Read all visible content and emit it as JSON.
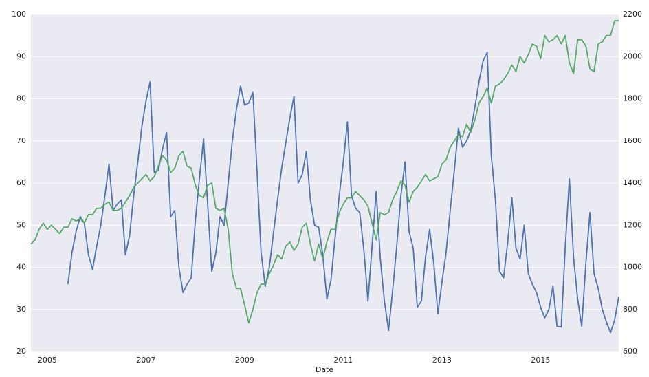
{
  "chart_data": {
    "type": "line",
    "xlabel": "Date",
    "x": [
      2004.667,
      2004.75,
      2004.833,
      2004.917,
      2005,
      2005.083,
      2005.167,
      2005.25,
      2005.333,
      2005.417,
      2005.5,
      2005.583,
      2005.667,
      2005.75,
      2005.833,
      2005.917,
      2006,
      2006.083,
      2006.167,
      2006.25,
      2006.333,
      2006.417,
      2006.5,
      2006.583,
      2006.667,
      2006.75,
      2006.833,
      2006.917,
      2007,
      2007.083,
      2007.167,
      2007.25,
      2007.333,
      2007.417,
      2007.5,
      2007.583,
      2007.667,
      2007.75,
      2007.833,
      2007.917,
      2008,
      2008.083,
      2008.167,
      2008.25,
      2008.333,
      2008.417,
      2008.5,
      2008.583,
      2008.667,
      2008.75,
      2008.833,
      2008.917,
      2009,
      2009.083,
      2009.167,
      2009.25,
      2009.333,
      2009.417,
      2009.5,
      2009.583,
      2009.667,
      2009.75,
      2009.833,
      2009.917,
      2010,
      2010.083,
      2010.167,
      2010.25,
      2010.333,
      2010.417,
      2010.5,
      2010.583,
      2010.667,
      2010.75,
      2010.833,
      2010.917,
      2011,
      2011.083,
      2011.167,
      2011.25,
      2011.333,
      2011.417,
      2011.5,
      2011.583,
      2011.667,
      2011.75,
      2011.833,
      2011.917,
      2012,
      2012.083,
      2012.167,
      2012.25,
      2012.333,
      2012.417,
      2012.5,
      2012.583,
      2012.667,
      2012.75,
      2012.833,
      2012.917,
      2013,
      2013.083,
      2013.167,
      2013.25,
      2013.333,
      2013.417,
      2013.5,
      2013.583,
      2013.667,
      2013.75,
      2013.833,
      2013.917,
      2014,
      2014.083,
      2014.167,
      2014.25,
      2014.333,
      2014.417,
      2014.5,
      2014.583,
      2014.667,
      2014.75,
      2014.833,
      2014.917,
      2015,
      2015.083,
      2015.167,
      2015.25,
      2015.333,
      2015.417,
      2015.5,
      2015.583,
      2015.667,
      2015.75,
      2015.833,
      2015.917,
      2016,
      2016.083,
      2016.167,
      2016.25,
      2016.333,
      2016.417,
      2016.5,
      2016.583
    ],
    "series": [
      {
        "color": "#4c72b0",
        "axis": "y",
        "values": [
          null,
          null,
          null,
          null,
          null,
          null,
          null,
          null,
          null,
          36,
          43.5,
          48.5,
          52,
          50.5,
          43,
          39.5,
          45,
          50,
          57,
          64.5,
          53.5,
          55,
          56,
          43,
          47.5,
          57,
          65,
          73.5,
          79.5,
          84,
          62.5,
          63,
          68,
          72,
          52,
          53.5,
          40,
          34,
          36,
          37.5,
          51,
          61,
          70.5,
          55,
          39,
          43.5,
          52,
          50,
          60,
          70,
          77.5,
          83,
          78.5,
          79,
          81.5,
          63,
          43.5,
          35.5,
          40,
          48,
          56,
          63.5,
          69.5,
          75.5,
          80.5,
          60,
          62,
          67.5,
          56,
          50,
          49.5,
          43,
          32.5,
          37,
          47,
          57,
          65,
          74.5,
          57,
          54,
          53,
          44,
          32,
          45,
          58,
          42,
          32,
          25,
          34.5,
          45,
          57,
          65,
          48.5,
          44.5,
          30.5,
          32,
          42.5,
          49,
          41,
          29,
          36.5,
          43.5,
          53.5,
          63,
          73,
          68.5,
          70,
          72.5,
          78,
          84,
          89,
          91,
          66.5,
          56,
          39,
          37.5,
          46,
          56.5,
          44.5,
          42,
          50,
          38.5,
          36,
          34,
          30.5,
          28,
          30,
          35.5,
          26,
          25.8,
          45,
          61,
          42.5,
          32.5,
          26,
          41,
          53,
          38.5,
          35,
          30,
          27,
          24.5,
          27.5,
          33
        ]
      },
      {
        "color": "#55a868",
        "axis": "y2",
        "values": [
          1110,
          1130,
          1180,
          1210,
          1180,
          1200,
          1180,
          1160,
          1190,
          1190,
          1230,
          1220,
          1230,
          1210,
          1250,
          1250,
          1280,
          1280,
          1300,
          1310,
          1270,
          1270,
          1280,
          1310,
          1340,
          1380,
          1400,
          1420,
          1440,
          1410,
          1430,
          1480,
          1530,
          1510,
          1450,
          1470,
          1530,
          1550,
          1480,
          1470,
          1390,
          1340,
          1330,
          1390,
          1400,
          1280,
          1270,
          1280,
          1180,
          970,
          900,
          900,
          820,
          736,
          800,
          880,
          920,
          920,
          970,
          1010,
          1060,
          1040,
          1100,
          1120,
          1080,
          1110,
          1190,
          1210,
          1110,
          1030,
          1110,
          1040,
          1120,
          1180,
          1180,
          1260,
          1300,
          1330,
          1330,
          1360,
          1340,
          1320,
          1290,
          1210,
          1130,
          1260,
          1250,
          1260,
          1320,
          1360,
          1410,
          1390,
          1310,
          1360,
          1380,
          1410,
          1440,
          1410,
          1420,
          1430,
          1490,
          1510,
          1570,
          1600,
          1630,
          1620,
          1680,
          1640,
          1700,
          1780,
          1810,
          1850,
          1780,
          1860,
          1870,
          1890,
          1920,
          1960,
          1930,
          2000,
          1970,
          2010,
          2060,
          2050,
          1990,
          2100,
          2070,
          2080,
          2100,
          2060,
          2100,
          1970,
          1920,
          2080,
          2080,
          2050,
          1940,
          1930,
          2060,
          2070,
          2100,
          2100,
          2170,
          2170
        ]
      }
    ],
    "xlim": [
      2004.667,
      2016.583
    ],
    "xticks": [
      2005,
      2007,
      2009,
      2011,
      2013,
      2015
    ],
    "ylim": [
      20,
      100
    ],
    "yticks": [
      20,
      30,
      40,
      50,
      60,
      70,
      80,
      90,
      100
    ],
    "y2lim": [
      600,
      2200
    ],
    "y2ticks": [
      600,
      800,
      1000,
      1200,
      1400,
      1600,
      1800,
      2000,
      2200
    ],
    "grid": "y"
  }
}
